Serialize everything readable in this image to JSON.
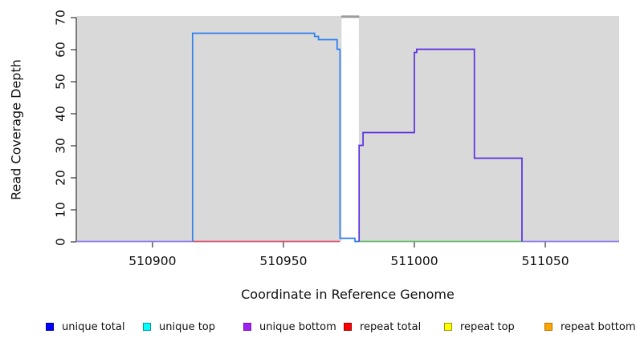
{
  "chart_data": {
    "type": "line",
    "title": "",
    "xlabel": "Coordinate in Reference Genome",
    "ylabel": "Read Coverage Depth",
    "xlim": [
      510870.9,
      511078.2
    ],
    "ylim": [
      0,
      70
    ],
    "x_ticks": [
      510900,
      510950,
      511000,
      511050
    ],
    "y_ticks": [
      0,
      10,
      20,
      30,
      40,
      50,
      60,
      70
    ],
    "grid": false,
    "legend_position": "bottom",
    "plot_bg_color": "#d9d9d9",
    "axis_color": "#333333",
    "no_data_gap": {
      "x_from": 510972.2,
      "x_to": 510978.8,
      "cap_color": "#9c9c9c"
    },
    "series": [
      {
        "name": "baseline-left-unique-bottom-over-total",
        "color": "#8f7ce8",
        "points": [
          [
            510870.9,
            0
          ],
          [
            510915.3,
            0
          ]
        ]
      },
      {
        "name": "baseline-repeat-total-region",
        "color": "#d9536f",
        "points": [
          [
            510915.3,
            0
          ],
          [
            510971.6,
            0
          ]
        ]
      },
      {
        "name": "baseline-green-overlap-region",
        "color": "#68bd6c",
        "points": [
          [
            510978.8,
            0
          ],
          [
            511041.1,
            0
          ]
        ]
      },
      {
        "name": "baseline-far-right",
        "color": "#8f7ce8",
        "points": [
          [
            511041.1,
            0
          ],
          [
            511078.2,
            0
          ]
        ]
      },
      {
        "name": "unique-coverage-top-strand-block",
        "color": "#2f7ff0",
        "points": [
          [
            510915.3,
            0
          ],
          [
            510915.3,
            65
          ],
          [
            510961.9,
            65
          ],
          [
            510961.9,
            64
          ],
          [
            510963.4,
            64
          ],
          [
            510963.4,
            63
          ],
          [
            510970.5,
            63
          ],
          [
            510970.5,
            60
          ],
          [
            510971.6,
            60
          ],
          [
            510971.6,
            1
          ],
          [
            510977.3,
            1
          ],
          [
            510977.3,
            0
          ],
          [
            510978.8,
            0
          ]
        ]
      },
      {
        "name": "unique-coverage-bottom-strand-block",
        "color": "#5a2fe0",
        "points": [
          [
            510978.9,
            0
          ],
          [
            510978.9,
            30
          ],
          [
            510980.4,
            30
          ],
          [
            510980.4,
            34
          ],
          [
            511000.0,
            34
          ],
          [
            511000.0,
            59
          ],
          [
            511000.9,
            59
          ],
          [
            511000.9,
            60
          ],
          [
            511022.9,
            60
          ],
          [
            511022.9,
            26
          ],
          [
            511041.1,
            26
          ],
          [
            511041.1,
            0
          ]
        ]
      }
    ],
    "legend": [
      {
        "label": "unique total",
        "fill": "#0000ff",
        "border": "#000099"
      },
      {
        "label": "unique top",
        "fill": "#00ffff",
        "border": "#009999"
      },
      {
        "label": "unique bottom",
        "fill": "#a020f0",
        "border": "#7a14b8"
      },
      {
        "label": "repeat total",
        "fill": "#ff0000",
        "border": "#990000"
      },
      {
        "label": "repeat top",
        "fill": "#ffff00",
        "border": "#999900"
      },
      {
        "label": "repeat bottom",
        "fill": "#ffa500",
        "border": "#b87400"
      }
    ]
  }
}
